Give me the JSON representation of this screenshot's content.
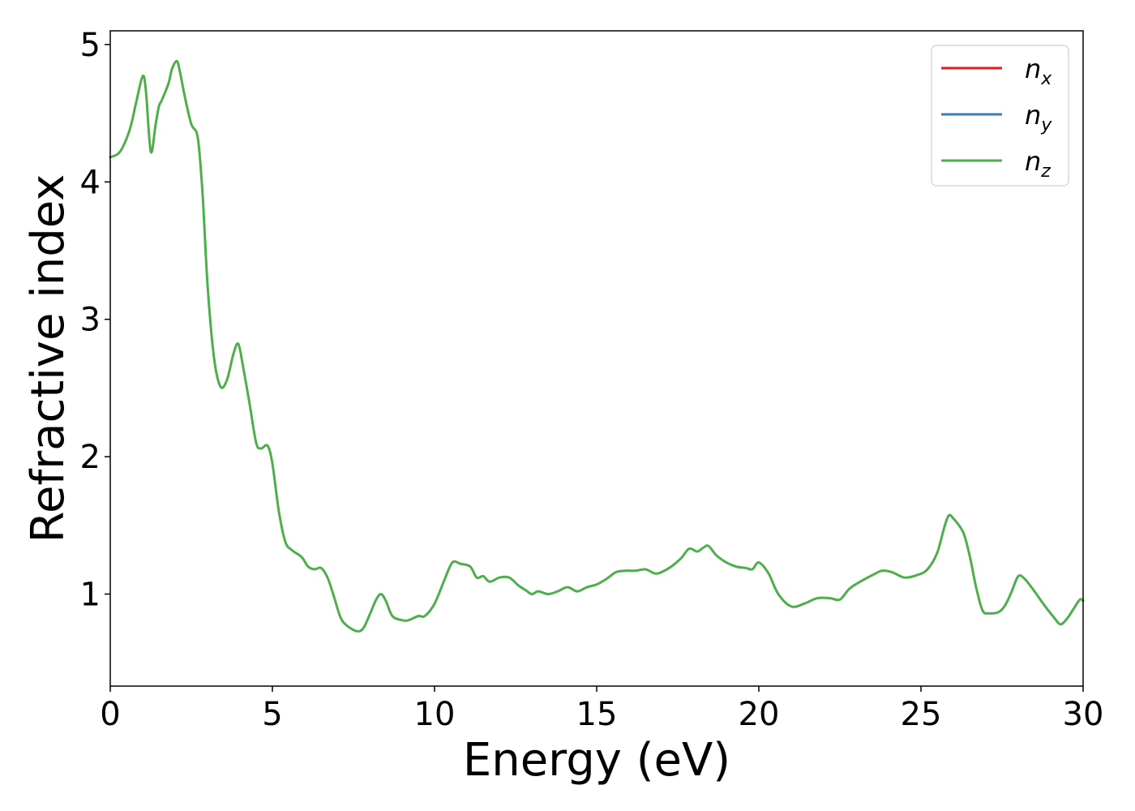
{
  "chart_data": {
    "type": "line",
    "xlabel": "Energy (eV)",
    "ylabel": "Refractive index",
    "xlim": [
      0,
      30
    ],
    "ylim": [
      0.33,
      5.1
    ],
    "xticks": [
      0,
      5,
      10,
      15,
      20,
      25,
      30
    ],
    "yticks": [
      1,
      2,
      3,
      4,
      5
    ],
    "grid": false,
    "legend_position": "top-right",
    "series": [
      {
        "name": "n_x",
        "label_base": "n",
        "label_sub": "x",
        "color": "#e41a1c",
        "visible": false,
        "same_as": "n_z"
      },
      {
        "name": "n_y",
        "label_base": "n",
        "label_sub": "y",
        "color": "#377eb8",
        "visible": false,
        "same_as": "n_z"
      },
      {
        "name": "n_z",
        "label_base": "n",
        "label_sub": "z",
        "color": "#4daf4a",
        "visible": true,
        "x": [
          0.0,
          0.3,
          0.6,
          0.8,
          1.0,
          1.1,
          1.25,
          1.4,
          1.5,
          1.6,
          1.8,
          1.9,
          2.05,
          2.15,
          2.3,
          2.5,
          2.7,
          2.85,
          3.0,
          3.2,
          3.4,
          3.6,
          3.8,
          3.95,
          4.1,
          4.3,
          4.5,
          4.65,
          4.85,
          5.0,
          5.2,
          5.4,
          5.6,
          5.9,
          6.1,
          6.3,
          6.5,
          6.7,
          6.9,
          7.1,
          7.3,
          7.6,
          7.8,
          8.0,
          8.2,
          8.35,
          8.5,
          8.7,
          9.0,
          9.2,
          9.5,
          9.7,
          10.0,
          10.3,
          10.55,
          10.8,
          11.1,
          11.3,
          11.5,
          11.7,
          12.0,
          12.3,
          12.6,
          12.8,
          13.0,
          13.2,
          13.5,
          13.8,
          14.1,
          14.4,
          14.7,
          15.0,
          15.3,
          15.6,
          15.9,
          16.2,
          16.5,
          16.8,
          17.0,
          17.3,
          17.6,
          17.85,
          18.1,
          18.3,
          18.45,
          18.7,
          19.0,
          19.3,
          19.6,
          19.8,
          20.0,
          20.3,
          20.6,
          21.0,
          21.4,
          21.8,
          22.2,
          22.5,
          22.8,
          23.2,
          23.6,
          23.8,
          24.1,
          24.5,
          24.9,
          25.2,
          25.5,
          25.7,
          25.85,
          26.0,
          26.3,
          26.5,
          26.7,
          26.9,
          27.1,
          27.4,
          27.6,
          27.8,
          28.0,
          28.2,
          28.5,
          28.8,
          29.1,
          29.3,
          29.5,
          29.7,
          29.9,
          30.0
        ],
        "y": [
          4.18,
          4.22,
          4.38,
          4.58,
          4.77,
          4.66,
          4.22,
          4.42,
          4.55,
          4.6,
          4.72,
          4.82,
          4.88,
          4.8,
          4.62,
          4.42,
          4.32,
          3.9,
          3.25,
          2.72,
          2.51,
          2.56,
          2.75,
          2.82,
          2.65,
          2.38,
          2.1,
          2.06,
          2.08,
          1.95,
          1.6,
          1.38,
          1.32,
          1.27,
          1.2,
          1.18,
          1.19,
          1.12,
          0.98,
          0.83,
          0.77,
          0.73,
          0.75,
          0.85,
          0.96,
          1.0,
          0.95,
          0.84,
          0.81,
          0.81,
          0.84,
          0.84,
          0.93,
          1.1,
          1.23,
          1.22,
          1.2,
          1.12,
          1.13,
          1.09,
          1.12,
          1.12,
          1.06,
          1.03,
          1.0,
          1.02,
          1.0,
          1.02,
          1.05,
          1.02,
          1.05,
          1.07,
          1.11,
          1.16,
          1.17,
          1.17,
          1.18,
          1.15,
          1.16,
          1.2,
          1.26,
          1.33,
          1.31,
          1.34,
          1.35,
          1.28,
          1.23,
          1.2,
          1.19,
          1.18,
          1.23,
          1.15,
          1.0,
          0.91,
          0.93,
          0.97,
          0.97,
          0.96,
          1.04,
          1.1,
          1.15,
          1.17,
          1.16,
          1.12,
          1.14,
          1.18,
          1.3,
          1.47,
          1.57,
          1.55,
          1.45,
          1.28,
          1.05,
          0.88,
          0.86,
          0.87,
          0.92,
          1.02,
          1.13,
          1.11,
          1.02,
          0.92,
          0.83,
          0.78,
          0.82,
          0.89,
          0.96,
          0.95
        ]
      }
    ]
  }
}
